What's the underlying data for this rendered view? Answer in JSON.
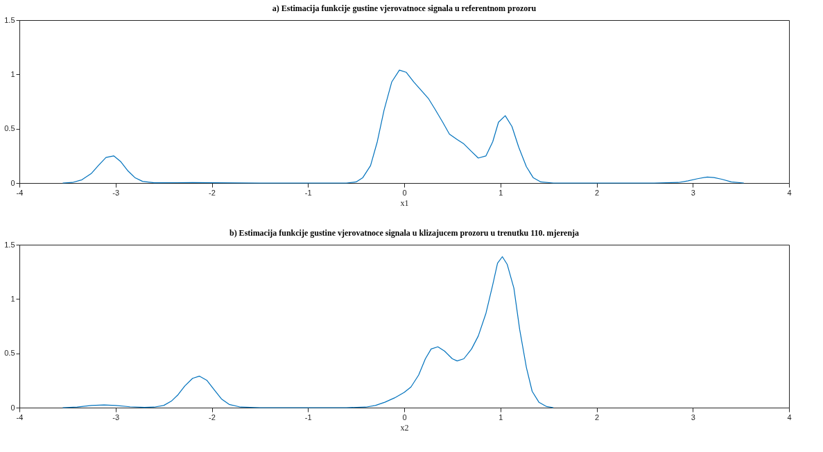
{
  "chart_data": [
    {
      "type": "line",
      "title": "a) Estimacija funkcije gustine vjerovatnoce signala u referentnom prozoru",
      "xlabel": "x1",
      "xlim": [
        -4,
        4
      ],
      "xticks": [
        -4,
        -3,
        -2,
        -1,
        0,
        1,
        2,
        3,
        4
      ],
      "ylim": [
        0,
        1.5
      ],
      "yticks": [
        0,
        0.5,
        1,
        1.5
      ],
      "grid": false,
      "marker": "none",
      "line_style": "solid",
      "x": [
        -3.55,
        -3.45,
        -3.35,
        -3.25,
        -3.18,
        -3.1,
        -3.02,
        -2.95,
        -2.87,
        -2.8,
        -2.72,
        -2.6,
        -2.2,
        -1.5,
        -0.6,
        -0.5,
        -0.43,
        -0.35,
        -0.28,
        -0.21,
        -0.13,
        -0.05,
        0.02,
        0.1,
        0.18,
        0.25,
        0.32,
        0.4,
        0.47,
        0.55,
        0.62,
        0.7,
        0.77,
        0.85,
        0.92,
        0.98,
        1.05,
        1.12,
        1.19,
        1.27,
        1.34,
        1.42,
        1.55,
        2.6,
        2.85,
        2.95,
        3.05,
        3.15,
        3.22,
        3.3,
        3.4,
        3.53
      ],
      "series": [
        {
          "color": "#0072bd",
          "values": [
            0,
            0.005,
            0.03,
            0.09,
            0.16,
            0.235,
            0.25,
            0.2,
            0.11,
            0.05,
            0.015,
            0.002,
            0.004,
            0,
            0,
            0.01,
            0.05,
            0.16,
            0.38,
            0.67,
            0.93,
            1.04,
            1.02,
            0.93,
            0.85,
            0.78,
            0.68,
            0.56,
            0.45,
            0.4,
            0.36,
            0.29,
            0.23,
            0.25,
            0.38,
            0.56,
            0.62,
            0.52,
            0.33,
            0.15,
            0.05,
            0.01,
            0,
            0,
            0.005,
            0.02,
            0.04,
            0.055,
            0.05,
            0.035,
            0.01,
            0
          ]
        }
      ]
    },
    {
      "type": "line",
      "title": "b) Estimacija funkcije gustine vjerovatnoce signala u klizajucem prozoru u trenutku 110. mjerenja",
      "xlabel": "x2",
      "xlim": [
        -4,
        4
      ],
      "xticks": [
        -4,
        -3,
        -2,
        -1,
        0,
        1,
        2,
        3,
        4
      ],
      "ylim": [
        0,
        1.5
      ],
      "yticks": [
        0,
        0.5,
        1,
        1.5
      ],
      "grid": false,
      "marker": "none",
      "line_style": "solid",
      "x": [
        -3.55,
        -3.4,
        -3.25,
        -3.12,
        -3.0,
        -2.85,
        -2.7,
        -2.6,
        -2.5,
        -2.42,
        -2.35,
        -2.28,
        -2.2,
        -2.13,
        -2.05,
        -1.98,
        -1.9,
        -1.82,
        -1.7,
        -1.5,
        -0.6,
        -0.4,
        -0.3,
        -0.2,
        -0.1,
        0,
        0.07,
        0.15,
        0.22,
        0.28,
        0.35,
        0.42,
        0.5,
        0.55,
        0.62,
        0.7,
        0.77,
        0.85,
        0.92,
        0.97,
        1.02,
        1.07,
        1.14,
        1.2,
        1.27,
        1.33,
        1.4,
        1.48,
        1.55
      ],
      "series": [
        {
          "color": "#0072bd",
          "values": [
            0,
            0.005,
            0.02,
            0.025,
            0.02,
            0.008,
            0.002,
            0.005,
            0.02,
            0.06,
            0.12,
            0.2,
            0.27,
            0.29,
            0.25,
            0.17,
            0.08,
            0.03,
            0.005,
            0,
            0,
            0.005,
            0.02,
            0.05,
            0.09,
            0.14,
            0.19,
            0.3,
            0.45,
            0.54,
            0.56,
            0.52,
            0.45,
            0.43,
            0.45,
            0.54,
            0.66,
            0.87,
            1.13,
            1.33,
            1.39,
            1.32,
            1.1,
            0.72,
            0.37,
            0.15,
            0.05,
            0.01,
            0
          ]
        }
      ]
    }
  ]
}
